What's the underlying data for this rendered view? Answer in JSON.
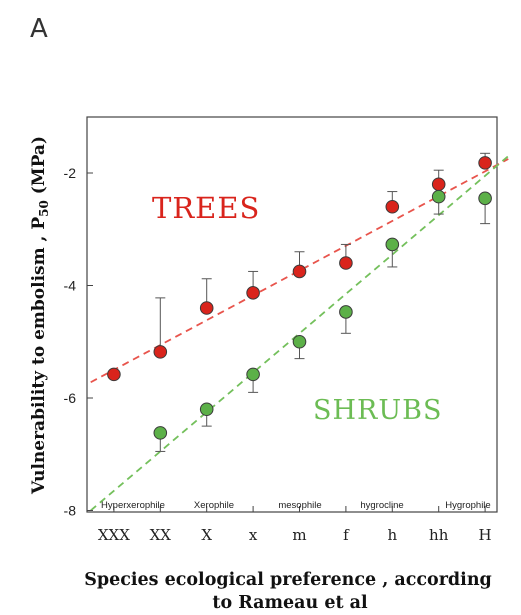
{
  "panel_label": "A",
  "chart_data": {
    "type": "scatter",
    "xlabel_line1": "Species  ecological  preference , according",
    "xlabel_line2": "to Rameau et  al",
    "ylabel": "Vulnerability  to embolism , P",
    "ylabel_sub": "50",
    "ylabel_unit": " (MPa)",
    "categories": [
      "XXX",
      "XX",
      "X",
      "x",
      "m",
      "f",
      "h",
      "hh",
      "H"
    ],
    "category_groups": [
      "Hyperxerophile",
      "Xerophile",
      "mesophile",
      "hygrocline",
      "Hygrophile"
    ],
    "yticks": [
      -2,
      -4,
      -6,
      -8
    ],
    "ylim": [
      -8,
      -1
    ],
    "grid": false,
    "series": [
      {
        "name": "TREES",
        "color": "#d9241c",
        "trend_color": "#e8544c",
        "values": [
          -5.58,
          -5.18,
          -4.4,
          -4.13,
          -3.75,
          -3.6,
          -2.6,
          -2.2,
          -1.82
        ],
        "err_upper": [
          -5.58,
          -4.22,
          -3.88,
          -3.75,
          -3.4,
          -3.27,
          -2.33,
          -1.95,
          -1.65
        ],
        "trend": {
          "start": [
            0.5,
            -5.72
          ],
          "end": [
            9.5,
            -1.75
          ]
        }
      },
      {
        "name": "SHRUBS",
        "color": "#5cb048",
        "trend_color": "#74c05c",
        "values": [
          null,
          -6.62,
          -6.2,
          -5.58,
          -5.0,
          -4.47,
          -3.27,
          -2.42,
          -2.45
        ],
        "err_lower": [
          null,
          -6.95,
          -6.5,
          -5.9,
          -5.3,
          -4.85,
          -3.67,
          -2.73,
          -2.9
        ],
        "trend": {
          "start": [
            0.5,
            -8.0
          ],
          "end": [
            9.5,
            -1.7
          ]
        }
      }
    ]
  }
}
